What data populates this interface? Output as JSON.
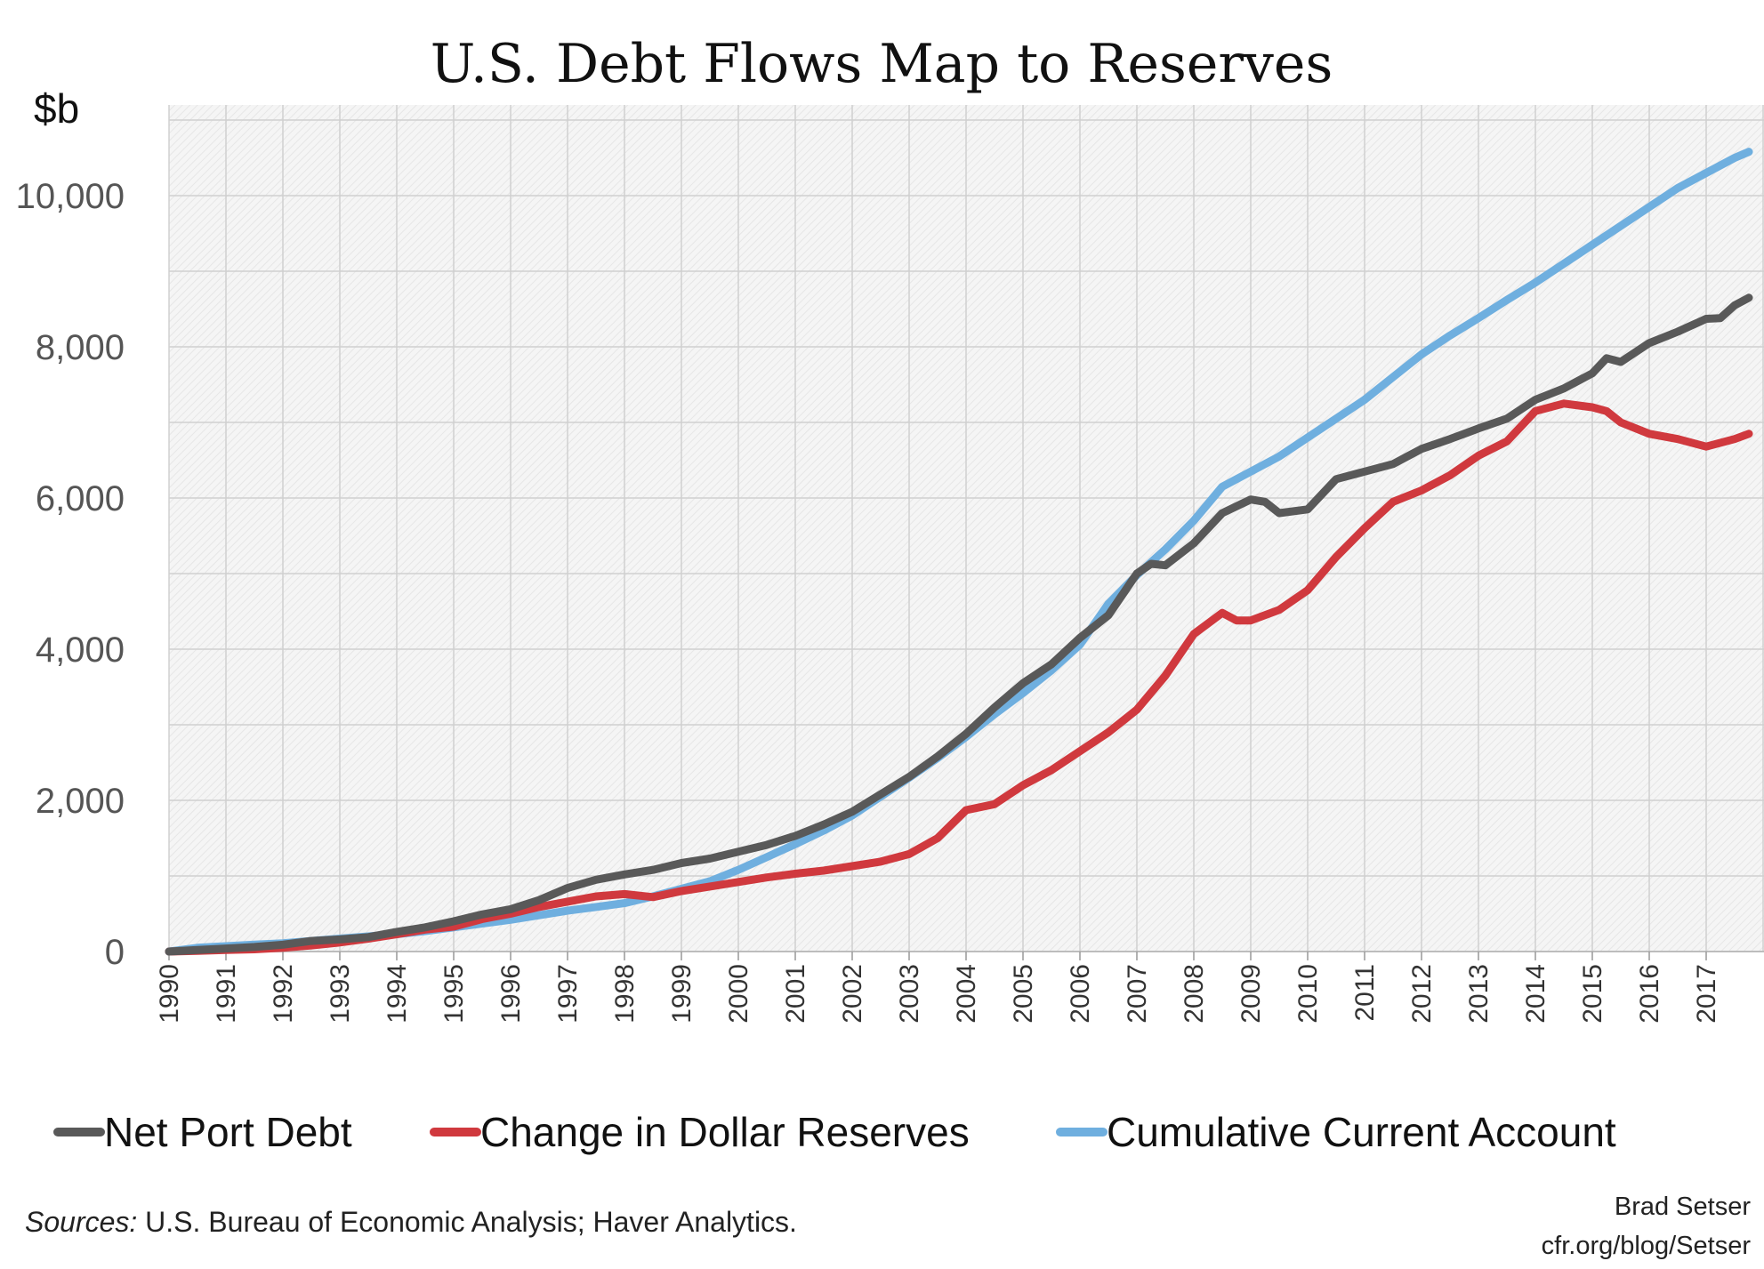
{
  "chart_data": {
    "type": "line",
    "title": "U.S. Debt Flows Map to Reserves",
    "ylabel": "$b",
    "xlabel": "",
    "x_range": [
      1990,
      2017.75
    ],
    "ylim": [
      0,
      11200
    ],
    "y_ticks": [
      0,
      2000,
      4000,
      6000,
      8000,
      10000
    ],
    "y_tick_labels": [
      "0",
      "2,000",
      "4,000",
      "6,000",
      "8,000",
      "10,000"
    ],
    "x_tick_labels": [
      "1990",
      "1991",
      "1992",
      "1993",
      "1994",
      "1995",
      "1996",
      "1997",
      "1998",
      "1999",
      "2000",
      "2001",
      "2002",
      "2003",
      "2004",
      "2005",
      "2006",
      "2007",
      "2008",
      "2009",
      "2010",
      "2011",
      "2012",
      "2013",
      "2014",
      "2015",
      "2016",
      "2017"
    ],
    "grid": true,
    "legend_position": "bottom",
    "series": [
      {
        "name": "Net Port Debt",
        "color": "#595959",
        "points": [
          [
            1990,
            0
          ],
          [
            1990.5,
            20
          ],
          [
            1991,
            40
          ],
          [
            1991.5,
            60
          ],
          [
            1992,
            90
          ],
          [
            1992.5,
            140
          ],
          [
            1993,
            160
          ],
          [
            1993.5,
            190
          ],
          [
            1994,
            260
          ],
          [
            1994.5,
            320
          ],
          [
            1995,
            400
          ],
          [
            1995.5,
            490
          ],
          [
            1996,
            560
          ],
          [
            1996.5,
            680
          ],
          [
            1997,
            840
          ],
          [
            1997.5,
            950
          ],
          [
            1998,
            1020
          ],
          [
            1998.5,
            1080
          ],
          [
            1999,
            1170
          ],
          [
            1999.5,
            1230
          ],
          [
            2000,
            1320
          ],
          [
            2000.5,
            1410
          ],
          [
            2001,
            1530
          ],
          [
            2001.5,
            1680
          ],
          [
            2002,
            1850
          ],
          [
            2002.5,
            2080
          ],
          [
            2003,
            2310
          ],
          [
            2003.5,
            2580
          ],
          [
            2004,
            2880
          ],
          [
            2004.5,
            3230
          ],
          [
            2005,
            3550
          ],
          [
            2005.5,
            3800
          ],
          [
            2006,
            4150
          ],
          [
            2006.5,
            4450
          ],
          [
            2007,
            5000
          ],
          [
            2007.25,
            5130
          ],
          [
            2007.5,
            5110
          ],
          [
            2008,
            5400
          ],
          [
            2008.5,
            5800
          ],
          [
            2009,
            5980
          ],
          [
            2009.25,
            5950
          ],
          [
            2009.5,
            5800
          ],
          [
            2010,
            5850
          ],
          [
            2010.5,
            6250
          ],
          [
            2011,
            6350
          ],
          [
            2011.5,
            6450
          ],
          [
            2012,
            6650
          ],
          [
            2012.5,
            6780
          ],
          [
            2013,
            6920
          ],
          [
            2013.5,
            7050
          ],
          [
            2014,
            7300
          ],
          [
            2014.5,
            7450
          ],
          [
            2015,
            7650
          ],
          [
            2015.25,
            7850
          ],
          [
            2015.5,
            7800
          ],
          [
            2016,
            8050
          ],
          [
            2016.5,
            8200
          ],
          [
            2017,
            8370
          ],
          [
            2017.25,
            8380
          ],
          [
            2017.5,
            8550
          ],
          [
            2017.75,
            8650
          ]
        ]
      },
      {
        "name": "Change in Dollar Reserves",
        "color": "#d0393e",
        "points": [
          [
            1990,
            0
          ],
          [
            1990.5,
            10
          ],
          [
            1991,
            20
          ],
          [
            1991.5,
            30
          ],
          [
            1992,
            50
          ],
          [
            1992.5,
            80
          ],
          [
            1993,
            120
          ],
          [
            1993.5,
            170
          ],
          [
            1994,
            230
          ],
          [
            1994.5,
            290
          ],
          [
            1995,
            330
          ],
          [
            1995.5,
            430
          ],
          [
            1996,
            500
          ],
          [
            1996.5,
            590
          ],
          [
            1997,
            660
          ],
          [
            1997.5,
            730
          ],
          [
            1998,
            760
          ],
          [
            1998.5,
            720
          ],
          [
            1999,
            800
          ],
          [
            1999.5,
            860
          ],
          [
            2000,
            920
          ],
          [
            2000.5,
            980
          ],
          [
            2001,
            1030
          ],
          [
            2001.5,
            1070
          ],
          [
            2002,
            1130
          ],
          [
            2002.5,
            1190
          ],
          [
            2003,
            1290
          ],
          [
            2003.5,
            1500
          ],
          [
            2004,
            1870
          ],
          [
            2004.5,
            1950
          ],
          [
            2005,
            2200
          ],
          [
            2005.5,
            2400
          ],
          [
            2006,
            2650
          ],
          [
            2006.5,
            2900
          ],
          [
            2007,
            3200
          ],
          [
            2007.5,
            3650
          ],
          [
            2008,
            4200
          ],
          [
            2008.5,
            4480
          ],
          [
            2008.75,
            4380
          ],
          [
            2009,
            4380
          ],
          [
            2009.5,
            4520
          ],
          [
            2010,
            4780
          ],
          [
            2010.5,
            5220
          ],
          [
            2011,
            5600
          ],
          [
            2011.5,
            5950
          ],
          [
            2012,
            6100
          ],
          [
            2012.5,
            6300
          ],
          [
            2013,
            6560
          ],
          [
            2013.5,
            6750
          ],
          [
            2014,
            7150
          ],
          [
            2014.5,
            7250
          ],
          [
            2015,
            7200
          ],
          [
            2015.25,
            7150
          ],
          [
            2015.5,
            7000
          ],
          [
            2016,
            6850
          ],
          [
            2016.5,
            6780
          ],
          [
            2017,
            6680
          ],
          [
            2017.5,
            6780
          ],
          [
            2017.75,
            6850
          ]
        ]
      },
      {
        "name": "Cumulative Current Account",
        "color": "#6fafdf",
        "points": [
          [
            1990,
            0
          ],
          [
            1990.5,
            50
          ],
          [
            1991,
            70
          ],
          [
            1991.5,
            90
          ],
          [
            1992,
            110
          ],
          [
            1992.5,
            140
          ],
          [
            1993,
            170
          ],
          [
            1993.5,
            200
          ],
          [
            1994,
            230
          ],
          [
            1994.5,
            270
          ],
          [
            1995,
            320
          ],
          [
            1995.5,
            370
          ],
          [
            1996,
            420
          ],
          [
            1996.5,
            480
          ],
          [
            1997,
            540
          ],
          [
            1997.5,
            590
          ],
          [
            1998,
            640
          ],
          [
            1998.5,
            730
          ],
          [
            1999,
            830
          ],
          [
            1999.5,
            930
          ],
          [
            2000,
            1080
          ],
          [
            2000.5,
            1250
          ],
          [
            2001,
            1420
          ],
          [
            2001.5,
            1600
          ],
          [
            2002,
            1800
          ],
          [
            2002.5,
            2050
          ],
          [
            2003,
            2300
          ],
          [
            2003.5,
            2560
          ],
          [
            2004,
            2840
          ],
          [
            2004.5,
            3140
          ],
          [
            2005,
            3420
          ],
          [
            2005.5,
            3720
          ],
          [
            2006,
            4060
          ],
          [
            2006.5,
            4600
          ],
          [
            2007,
            4980
          ],
          [
            2007.5,
            5320
          ],
          [
            2008,
            5700
          ],
          [
            2008.5,
            6150
          ],
          [
            2009,
            6350
          ],
          [
            2009.5,
            6550
          ],
          [
            2010,
            6800
          ],
          [
            2010.5,
            7050
          ],
          [
            2011,
            7300
          ],
          [
            2011.5,
            7600
          ],
          [
            2012,
            7900
          ],
          [
            2012.5,
            8150
          ],
          [
            2013,
            8380
          ],
          [
            2013.5,
            8620
          ],
          [
            2014,
            8850
          ],
          [
            2014.5,
            9100
          ],
          [
            2015,
            9350
          ],
          [
            2015.5,
            9600
          ],
          [
            2016,
            9850
          ],
          [
            2016.5,
            10100
          ],
          [
            2017,
            10300
          ],
          [
            2017.5,
            10500
          ],
          [
            2017.75,
            10580
          ]
        ]
      }
    ]
  },
  "footer": {
    "sources_label": "Sources:",
    "sources_text": " U.S. Bureau of Economic Analysis; Haver Analytics.",
    "credit_line1": "Brad Setser",
    "credit_line2": "cfr.org/blog/Setser"
  }
}
